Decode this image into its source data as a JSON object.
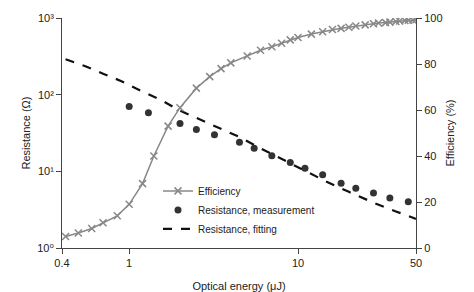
{
  "chart_data": {
    "type": "line",
    "title": "",
    "x_label": "Optical energy (μJ)",
    "y_label": "Resistance (Ω)",
    "y2_label": "Efficiency (%)",
    "log": true,
    "grid": false,
    "legend": "lower center",
    "xlim": [
      0.4,
      50
    ],
    "xticks": [
      0.4,
      1,
      10,
      50
    ],
    "ylim": [
      1,
      1000
    ],
    "yticks": [
      {
        "value": 1,
        "label": "10⁰"
      },
      {
        "value": 10,
        "label": "10¹"
      },
      {
        "value": 100,
        "label": "10²"
      },
      {
        "value": 1000,
        "label": "10³"
      }
    ],
    "y2lim": [
      0,
      100
    ],
    "y2ticks": [
      0,
      20,
      40,
      60,
      80,
      100
    ],
    "series": [
      {
        "name": "Efficiency",
        "axis": "y2",
        "type": "line",
        "color": "#888888",
        "marker": "x",
        "line_style": "solid",
        "x": [
          0.42,
          0.5,
          0.6,
          0.7,
          0.85,
          1.0,
          1.2,
          1.4,
          1.7,
          2.0,
          2.5,
          3.0,
          3.5,
          4.0,
          5.0,
          6.0,
          7.0,
          8.0,
          9.0,
          10.0,
          12.0,
          14.0,
          16.0,
          18.0,
          20.0,
          22.0,
          25.0,
          28.0,
          30.0,
          33.0,
          35.0,
          38.0,
          40.0,
          43.0,
          45.0,
          48.0,
          50.0
        ],
        "values": [
          5.0,
          6.5,
          8.5,
          11.0,
          14.0,
          19.0,
          28.0,
          40.0,
          53.0,
          61.0,
          69.5,
          74.5,
          78.0,
          80.5,
          83.5,
          86.0,
          87.5,
          89.0,
          90.5,
          91.5,
          93.0,
          94.0,
          95.0,
          95.5,
          96.0,
          96.5,
          97.0,
          97.5,
          97.8,
          98.0,
          98.2,
          98.5,
          98.7,
          98.9,
          99.0,
          99.1,
          99.2
        ]
      },
      {
        "name": "Resistance, measurement",
        "type": "scatter",
        "color": "#333333",
        "marker": "circle",
        "x": [
          1.0,
          1.3,
          2.0,
          2.5,
          3.2,
          4.5,
          5.5,
          7.0,
          9.0,
          11.0,
          14.0,
          18.0,
          22.0,
          28.0,
          35.0,
          45.0
        ],
        "values": [
          70.0,
          58.0,
          42.0,
          35.0,
          30.0,
          24.0,
          20.0,
          16.0,
          13.0,
          11.0,
          9.0,
          7.0,
          6.0,
          5.2,
          4.5,
          4.0
        ]
      },
      {
        "name": "Resistance, fitting",
        "type": "line",
        "color": "#111111",
        "line_style": "dashed",
        "x": [
          0.42,
          0.55,
          0.7,
          0.9,
          1.1,
          1.5,
          2.0,
          3.0,
          4.5,
          6.0,
          8.0,
          11.0,
          15.0,
          20.0,
          28.0,
          38.0,
          50.0
        ],
        "values": [
          290.0,
          235.0,
          188.0,
          150.0,
          120.0,
          88.0,
          62.0,
          42.0,
          28.0,
          20.0,
          14.5,
          10.2,
          7.2,
          5.4,
          3.9,
          3.0,
          2.4
        ]
      }
    ]
  }
}
